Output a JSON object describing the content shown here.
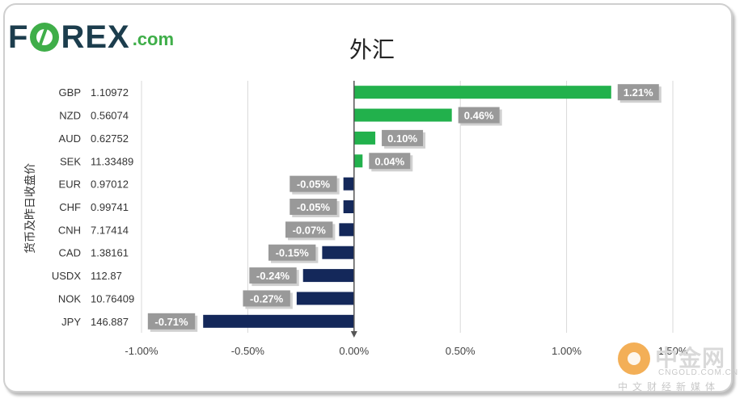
{
  "logo": {
    "brand": "F•REX",
    "suffix": ".com",
    "text_before": "F",
    "text_after": "REX",
    "o_color": "#3fae49"
  },
  "watermark": {
    "cn": "中金网",
    "en": "CNGOLD.COM.CN",
    "sub": "中文财经新媒体"
  },
  "chart_data": {
    "type": "bar",
    "orientation": "horizontal",
    "title": "外汇",
    "ylabel": "货币及昨日收盘价",
    "categories": [
      "GBP  1.10972",
      "NZD  0.56074",
      "AUD  0.62752",
      "SEK  11.33489",
      "EUR  0.97012",
      "CHF  0.99741",
      "CNH  7.17414",
      "CAD  1.38161",
      "USDX  112.87",
      "NOK  10.76409",
      "JPY  146.887"
    ],
    "values": [
      1.21,
      0.46,
      0.1,
      0.04,
      -0.05,
      -0.05,
      -0.07,
      -0.15,
      -0.24,
      -0.27,
      -0.71
    ],
    "data_labels": [
      "1.21%",
      "0.46%",
      "0.10%",
      "0.04%",
      "-0.05%",
      "-0.05%",
      "-0.07%",
      "-0.15%",
      "-0.24%",
      "-0.27%",
      "-0.71%"
    ],
    "xlim": [
      -1.0,
      1.5
    ],
    "xticks": [
      -1.0,
      -0.5,
      0.0,
      0.5,
      1.0,
      1.5
    ],
    "xtick_labels": [
      "-1.00%",
      "-0.50%",
      "0.00%",
      "0.50%",
      "1.00%",
      "1.50%"
    ],
    "positive_color": "#22b14c",
    "negative_color": "#14285a",
    "label_box_color": "#999999",
    "grid": true
  }
}
